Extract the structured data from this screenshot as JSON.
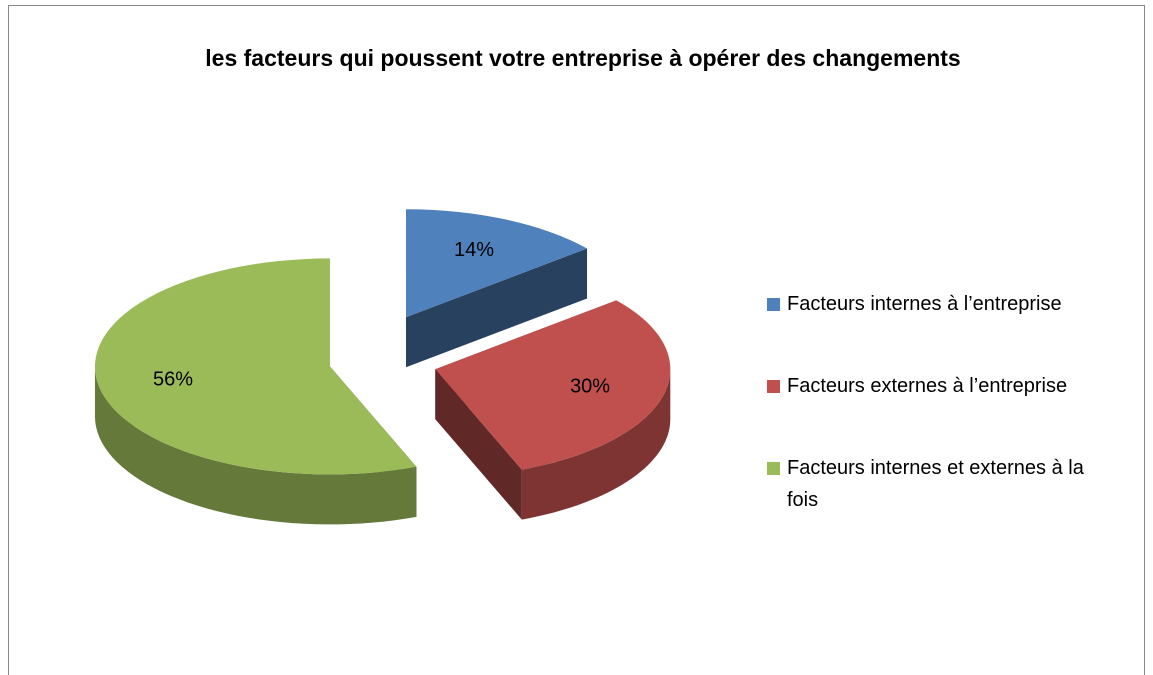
{
  "chart_data": {
    "type": "pie",
    "title": "les facteurs qui poussent votre entreprise à opérer des changements",
    "categories": [
      "Facteurs internes à l’entreprise",
      "Facteurs externes à l’entreprise",
      "Facteurs internes et externes à la fois"
    ],
    "values": [
      14,
      30,
      56
    ],
    "value_labels": [
      "14%",
      "30%",
      "56%"
    ],
    "colors": [
      "#4f81bd",
      "#c0504d",
      "#9bbb59"
    ],
    "legend": "right"
  }
}
